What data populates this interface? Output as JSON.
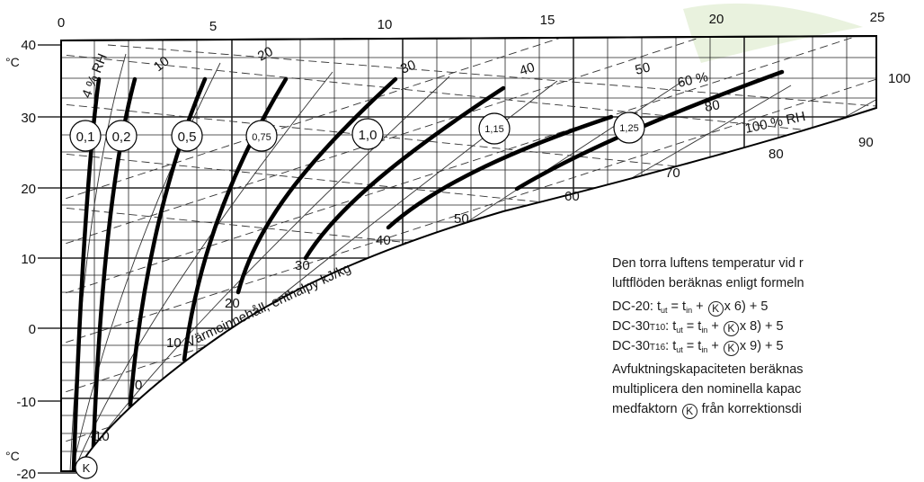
{
  "axes": {
    "enthalpy_ticks": [
      "0",
      "5",
      "10",
      "15",
      "20",
      "25"
    ],
    "temperature_ticks": [
      "40",
      "30",
      "20",
      "10",
      "0",
      "-10",
      "-20"
    ],
    "temperature_unit": "°C",
    "enthalpy_label": "Värmeinnehåll, enthalpy kJ/kg"
  },
  "rh_labels": [
    "4 % RH",
    "10",
    "20",
    "30",
    "40",
    "50",
    "60 %",
    "80",
    "100 % RH"
  ],
  "enthalpy_line_labels": [
    "100",
    "90",
    "80",
    "70",
    "60",
    "50",
    "40",
    "30",
    "20",
    "10",
    "0",
    "-10"
  ],
  "k_factor_labels": [
    "0,1",
    "0,2",
    "0,5",
    "0,75",
    "1,0",
    "1,15",
    "1,25"
  ],
  "k_symbol": "K",
  "note": {
    "line1": "Den torra luftens temperatur vid r",
    "line2": "luftflöden beräknas enligt formeln",
    "f1_model": "DC-20: t",
    "f2_model": "DC-30",
    "f2_suffix": "T10",
    "f3_model": "DC-30",
    "f3_suffix": "T16",
    "sub_out": "ut",
    "sub_in": "in",
    "f_eq": " = t",
    "f_plus": " + (",
    "f1_tail": "x 6) + 5",
    "f2_tail": "x 8) + 5",
    "f3_tail": "x 9) + 5",
    "line6": "Avfuktningskapaciteten beräknas",
    "line7": "multiplicera den nominella kapac",
    "line8_a": "medfaktorn",
    "line8_b": "från korrektionsdi"
  },
  "colors": {
    "ink": "#111111",
    "grid": "#222222",
    "leaf_watermark": "#e3efd6"
  }
}
